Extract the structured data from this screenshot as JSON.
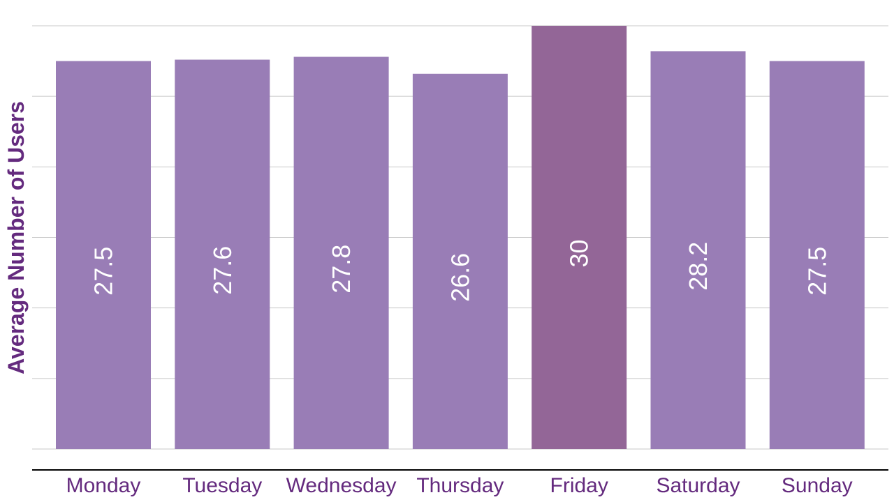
{
  "chart_data": {
    "type": "bar",
    "categories": [
      "Monday",
      "Tuesday",
      "Wednesday",
      "Thursday",
      "Friday",
      "Saturday",
      "Sunday"
    ],
    "values": [
      27.5,
      27.6,
      27.8,
      26.6,
      30,
      28.2,
      27.5
    ],
    "data_labels": [
      "27.5",
      "27.6",
      "27.8",
      "26.6",
      "30",
      "28.2",
      "27.5"
    ],
    "title": "",
    "xlabel": "",
    "ylabel": "Average Number of Users",
    "ylim": [
      0,
      30
    ],
    "grid": true,
    "highlight_index": 4
  },
  "colors": {
    "bar": "#997db6",
    "bar_highlight": "#936697",
    "text": "#642a7e",
    "data_label": "#ffffff",
    "grid": "#c8c8c8",
    "axis": "#000000"
  }
}
